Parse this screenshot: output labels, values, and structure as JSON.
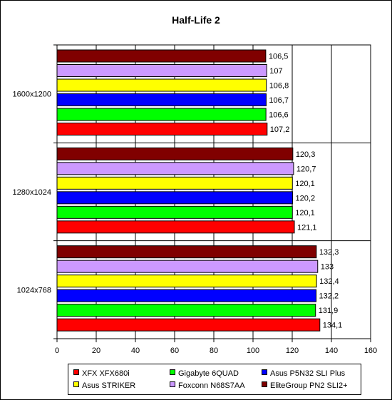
{
  "chart_data": {
    "type": "bar",
    "orientation": "horizontal",
    "title": "Half-Life 2",
    "xlabel": "",
    "ylabel": "",
    "xlim": [
      0,
      160
    ],
    "x_ticks": [
      "0",
      "20",
      "40",
      "60",
      "80",
      "100",
      "120",
      "140",
      "160"
    ],
    "categories": [
      "1600x1200",
      "1280x1024",
      "1024x768"
    ],
    "series": [
      {
        "name": "XFX XFX680i",
        "color": "#FF0000",
        "values": [
          107.2,
          121.1,
          134.1
        ],
        "labels": [
          "107,2",
          "121,1",
          "134,1"
        ]
      },
      {
        "name": "Gigabyte 6QUAD",
        "color": "#00FF00",
        "values": [
          106.6,
          120.1,
          131.9
        ],
        "labels": [
          "106,6",
          "120,1",
          "131,9"
        ]
      },
      {
        "name": "Asus P5N32 SLI Plus",
        "color": "#0000FF",
        "values": [
          106.7,
          120.2,
          132.2
        ],
        "labels": [
          "106,7",
          "120,2",
          "132,2"
        ]
      },
      {
        "name": "Asus STRIKER",
        "color": "#FFFF00",
        "values": [
          106.8,
          120.1,
          132.4
        ],
        "labels": [
          "106,8",
          "120,1",
          "132,4"
        ]
      },
      {
        "name": "Foxconn N68S7AA",
        "color": "#CC99FF",
        "values": [
          107,
          120.7,
          133
        ],
        "labels": [
          "107",
          "120,7",
          "133"
        ]
      },
      {
        "name": "EliteGroup PN2 SLI2+",
        "color": "#800000",
        "values": [
          106.5,
          120.3,
          132.3
        ],
        "labels": [
          "106,5",
          "120,3",
          "132,3"
        ]
      }
    ],
    "grid": "vertical",
    "legend_position": "bottom"
  }
}
